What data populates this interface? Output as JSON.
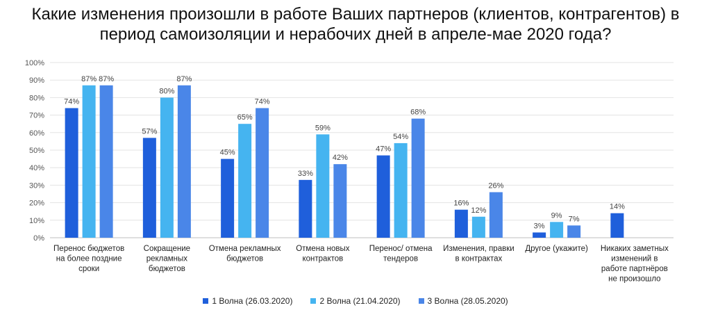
{
  "chart_data": {
    "type": "bar",
    "title_lines": [
      "Какие изменения произошли в работе Ваших партнеров (клиентов, контрагентов) в",
      "период самоизоляции и нерабочих дней в апреле-мае 2020 года?"
    ],
    "categories": [
      [
        "Перенос бюджетов",
        "на более поздние",
        "сроки"
      ],
      [
        "Сокращение",
        "рекламных",
        "бюджетов"
      ],
      [
        "Отмена рекламных",
        "бюджетов"
      ],
      [
        "Отмена новых",
        "контрактов"
      ],
      [
        "Перенос/ отмена",
        "тендеров"
      ],
      [
        "Изменения, правки",
        "в контрактах"
      ],
      [
        "Другое (укажите)"
      ],
      [
        "Никаких заметных",
        "изменений в",
        "работе партнёров",
        "не произошло"
      ]
    ],
    "series": [
      {
        "name": "1 Волна (26.03.2020)",
        "color": "#1f5fdb",
        "values": [
          74,
          57,
          45,
          33,
          47,
          16,
          3,
          14
        ]
      },
      {
        "name": "2 Волна (21.04.2020)",
        "color": "#45b4f0",
        "values": [
          87,
          80,
          65,
          59,
          54,
          12,
          9,
          null
        ]
      },
      {
        "name": "3 Волна (28.05.2020)",
        "color": "#4a86e8",
        "values": [
          87,
          87,
          74,
          42,
          68,
          26,
          7,
          null
        ]
      }
    ],
    "value_suffix": "%",
    "ylim": [
      0,
      100
    ],
    "yticks": [
      0,
      10,
      20,
      30,
      40,
      50,
      60,
      70,
      80,
      90,
      100
    ],
    "legend_position": "bottom",
    "grid": true
  }
}
